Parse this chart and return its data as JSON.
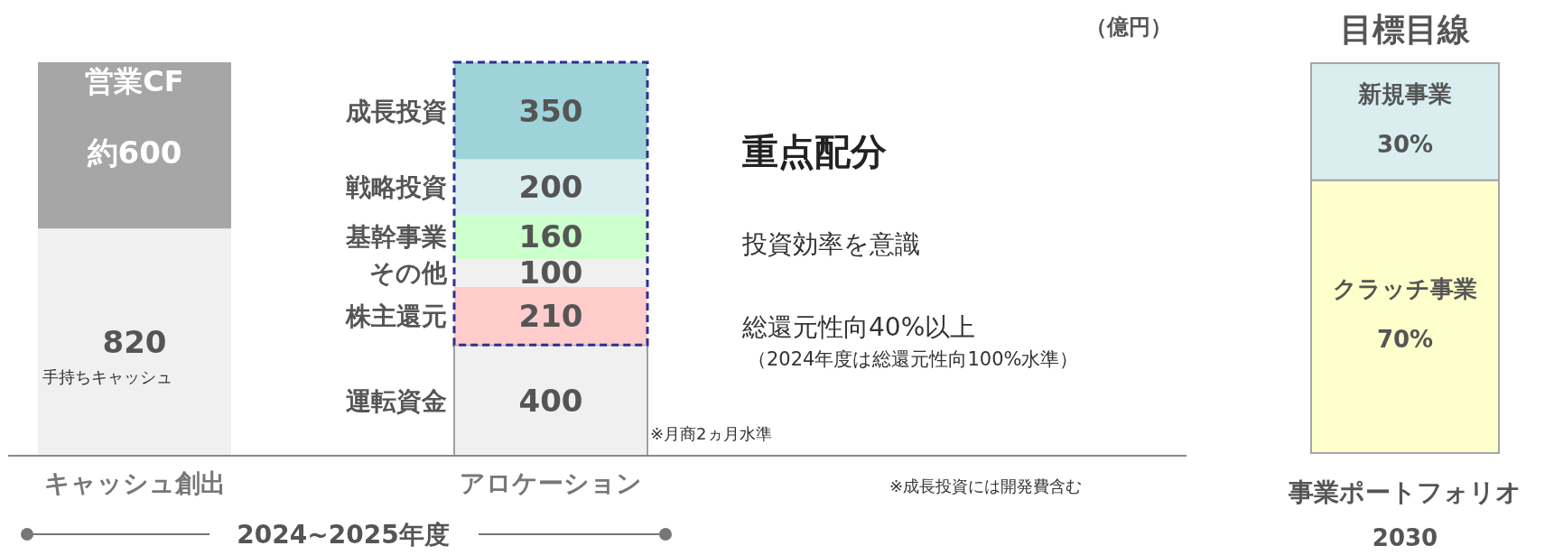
{
  "chart_data": [
    {
      "type": "bar",
      "stacked": true,
      "categories": [
        "キャッシュ創出",
        "アロケーション"
      ],
      "series": [
        {
          "name": "手持ちキャッシュ",
          "color": "#f0f0f0",
          "values": [
            820,
            null
          ],
          "value_labels": [
            "820",
            null
          ]
        },
        {
          "name": "営業CF",
          "color": "#a6a6a6",
          "values": [
            600,
            null
          ],
          "value_labels": [
            "約600",
            null
          ]
        },
        {
          "name": "運転資金",
          "color": "#f0f0f0",
          "values": [
            null,
            400
          ],
          "value_labels": [
            null,
            "400"
          ]
        },
        {
          "name": "株主還元",
          "color": "#ffcccc",
          "values": [
            null,
            210
          ],
          "value_labels": [
            null,
            "210"
          ]
        },
        {
          "name": "その他",
          "color": "#f0f0f0",
          "values": [
            null,
            100
          ],
          "value_labels": [
            null,
            "100"
          ]
        },
        {
          "name": "基幹事業",
          "color": "#ccffcc",
          "values": [
            null,
            160
          ],
          "value_labels": [
            null,
            "160"
          ]
        },
        {
          "name": "戦略投資",
          "color": "#daeef0",
          "values": [
            null,
            200
          ],
          "value_labels": [
            null,
            "200"
          ]
        },
        {
          "name": "成長投資",
          "color": "#9dd3d9",
          "values": [
            null,
            350
          ],
          "value_labels": [
            null,
            "350"
          ]
        }
      ],
      "annotations": [
        "（億円）",
        "重点配分",
        "投資効率を意識",
        "総還元性向40%以上",
        "（2024年度は総還元性向100%水準）",
        "※月商2ヵ月水準",
        "※成長投資には開発費含む",
        "2024~2025年度"
      ]
    },
    {
      "type": "bar",
      "stacked": true,
      "title": "目標目線",
      "categories": [
        "事業ポートフォリオ"
      ],
      "xlabel": "2030",
      "series": [
        {
          "name": "クラッチ事業",
          "color": "#ffffcc",
          "values": [
            70
          ],
          "value_labels": [
            "70%"
          ]
        },
        {
          "name": "新規事業",
          "color": "#daeef0",
          "values": [
            30
          ],
          "value_labels": [
            "30%"
          ]
        }
      ]
    }
  ]
}
